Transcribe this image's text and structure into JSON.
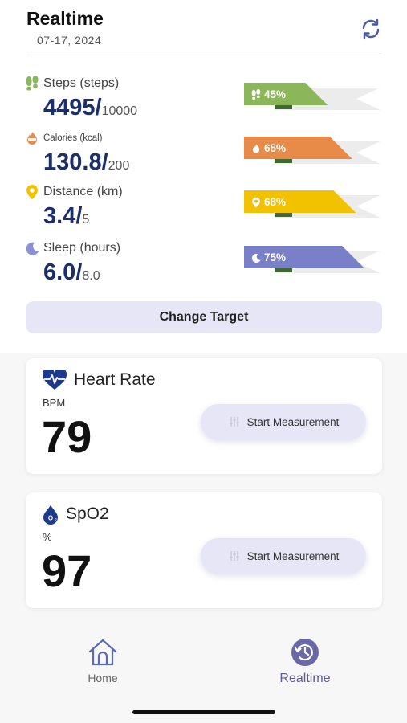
{
  "header": {
    "title": "Realtime",
    "date": "07-17, 2024",
    "refresh_icon": "refresh-icon"
  },
  "metrics": [
    {
      "icon": "footprints-icon",
      "label": "Steps (steps)",
      "value": "4495",
      "target": "10000",
      "percent": "45%",
      "percent_value": 45,
      "color": "#8cb65a"
    },
    {
      "icon": "flame-icon",
      "label": "Calories (kcal)",
      "value": "130.8",
      "target": "200",
      "percent": "65%",
      "percent_value": 65,
      "color": "#e88a48"
    },
    {
      "icon": "location-pin-icon",
      "label": "Distance (km)",
      "value": "3.4",
      "target": "5",
      "percent": "68%",
      "percent_value": 68,
      "color": "#f2c200"
    },
    {
      "icon": "moon-icon",
      "label": "Sleep (hours)",
      "value": "6.0",
      "target": "8.0",
      "percent": "75%",
      "percent_value": 75,
      "color": "#7a80c8"
    }
  ],
  "change_target_label": "Change Target",
  "heart_rate": {
    "title": "Heart Rate",
    "unit": "BPM",
    "value": "79",
    "button_label": "Start Measurement"
  },
  "spo2": {
    "title": "SpO2",
    "unit": "%",
    "value": "97",
    "button_label": "Start Measurement"
  },
  "nav": {
    "home_label": "Home",
    "realtime_label": "Realtime",
    "active": "Realtime"
  },
  "colors": {
    "accent": "#6a69a6",
    "value_text": "#1d2f6b",
    "button_bg": "#e6e6f6"
  }
}
